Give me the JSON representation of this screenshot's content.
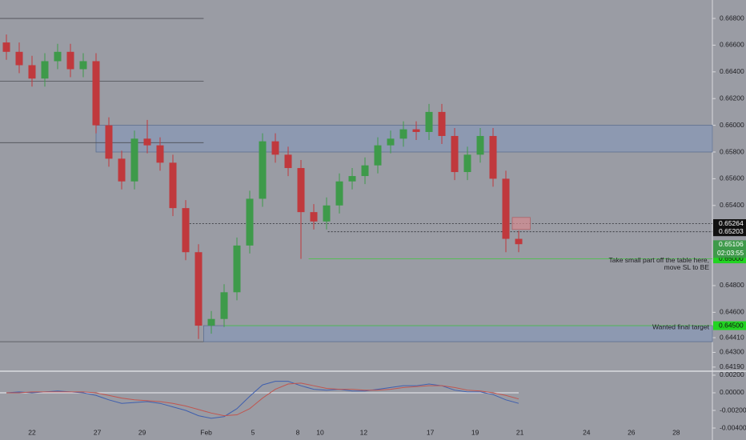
{
  "chart_data": [
    {
      "type": "candlestick",
      "xlim": [
        0,
        55.625
      ],
      "ylim": [
        0.64171,
        0.66938
      ],
      "yticks": [
        {
          "value": 0.668,
          "label": "0.66800"
        },
        {
          "value": 0.666,
          "label": "0.66600"
        },
        {
          "value": 0.664,
          "label": "0.66400"
        },
        {
          "value": 0.662,
          "label": "0.66200"
        },
        {
          "value": 0.66,
          "label": "0.66000"
        },
        {
          "value": 0.658,
          "label": "0.65800"
        },
        {
          "value": 0.656,
          "label": "0.65600"
        },
        {
          "value": 0.654,
          "label": "0.65400"
        },
        {
          "value": 0.648,
          "label": "0.64800"
        },
        {
          "value": 0.646,
          "label": "0.64600"
        },
        {
          "value": 0.6441,
          "label": "0.64410"
        },
        {
          "value": 0.643,
          "label": "0.64300"
        },
        {
          "value": 0.6419,
          "label": "0.64190"
        }
      ],
      "up_color": "#3e9a4a",
      "down_color": "#c0393d",
      "x": [
        0.5,
        1.5,
        2.5,
        3.5,
        4.5,
        5.5,
        6.5,
        7.5,
        8.5,
        9.5,
        10.5,
        11.5,
        12.5,
        13.5,
        14.5,
        15.5,
        16.5,
        17.5,
        18.5,
        19.5,
        20.5,
        21.5,
        22.5,
        23.5,
        24.5,
        25.5,
        26.5,
        27.5,
        28.5,
        29.5,
        30.5,
        31.5,
        32.5,
        33.5,
        34.5,
        35.5,
        36.5,
        37.5,
        38.5,
        39.5,
        40.5
      ],
      "open": [
        0.6662,
        0.6655,
        0.6645,
        0.6635,
        0.6648,
        0.6655,
        0.6642,
        0.6648,
        0.66,
        0.6575,
        0.6558,
        0.659,
        0.6585,
        0.6572,
        0.6538,
        0.6505,
        0.645,
        0.6455,
        0.6475,
        0.651,
        0.6545,
        0.6588,
        0.6578,
        0.6568,
        0.6535,
        0.6528,
        0.654,
        0.6558,
        0.6562,
        0.657,
        0.6585,
        0.659,
        0.6597,
        0.6595,
        0.661,
        0.6592,
        0.6565,
        0.6578,
        0.6592,
        0.656,
        0.6515
      ],
      "high": [
        0.6668,
        0.6662,
        0.6652,
        0.6654,
        0.6661,
        0.6661,
        0.6654,
        0.6654,
        0.6606,
        0.6581,
        0.6596,
        0.6604,
        0.6591,
        0.6578,
        0.6544,
        0.6511,
        0.6461,
        0.6481,
        0.6516,
        0.6551,
        0.6594,
        0.6594,
        0.6584,
        0.6574,
        0.6541,
        0.6546,
        0.6564,
        0.6568,
        0.6576,
        0.6591,
        0.6596,
        0.6603,
        0.6603,
        0.6616,
        0.6616,
        0.6598,
        0.6584,
        0.6598,
        0.6598,
        0.6566,
        0.6521
      ],
      "low": [
        0.6649,
        0.6639,
        0.6629,
        0.6629,
        0.6642,
        0.6636,
        0.6636,
        0.6594,
        0.6569,
        0.6552,
        0.6552,
        0.6579,
        0.6566,
        0.6532,
        0.6499,
        0.644,
        0.6444,
        0.6449,
        0.6469,
        0.6504,
        0.6539,
        0.6572,
        0.6562,
        0.65,
        0.6522,
        0.6522,
        0.6534,
        0.6552,
        0.6556,
        0.6564,
        0.6579,
        0.6584,
        0.6589,
        0.6589,
        0.6586,
        0.6559,
        0.6559,
        0.6572,
        0.6554,
        0.6505,
        0.6505
      ],
      "close": [
        0.6655,
        0.6645,
        0.6635,
        0.6648,
        0.6655,
        0.6642,
        0.6648,
        0.66,
        0.6575,
        0.6558,
        0.659,
        0.6585,
        0.6572,
        0.6538,
        0.6505,
        0.645,
        0.6455,
        0.6475,
        0.651,
        0.6545,
        0.6588,
        0.6578,
        0.6568,
        0.6535,
        0.6528,
        0.654,
        0.6558,
        0.6562,
        0.657,
        0.6585,
        0.659,
        0.6597,
        0.6595,
        0.661,
        0.6592,
        0.6565,
        0.6578,
        0.6592,
        0.656,
        0.6515,
        0.6511
      ],
      "zones": [
        {
          "from": 0.66,
          "to": 0.658,
          "x_start": 7.5
        },
        {
          "from": 0.645,
          "to": 0.6438,
          "x_start": 15.9
        }
      ],
      "levels": [
        {
          "value": 0.668,
          "x_end": 15.9
        },
        {
          "value": 0.6633,
          "x_end": 15.9
        },
        {
          "value": 0.6587,
          "x_end": 15.9
        },
        {
          "value": 0.6438,
          "x_end": 15.9
        }
      ],
      "dotted_levels": [
        {
          "price": 0.65264,
          "x_start": 14.8
        },
        {
          "price": 0.65203,
          "x_start": 25.6
        }
      ],
      "current": {
        "price": 0.65106,
        "countdown": "02:03:55"
      },
      "entry_box": {
        "from": 0.6522,
        "to": 0.6531,
        "x_start": 40,
        "x_end": 41.4
      },
      "targets": [
        {
          "price": {
            "value": 0.65,
            "label": "0.65000"
          },
          "x_start": 24.1,
          "note_lines": [
            "Take small part off the table here,",
            "move SL to BE"
          ]
        },
        {
          "price": {
            "value": 0.645,
            "label": "0.64500"
          },
          "x_start": 17.5,
          "note_lines": [
            "Wanted final target"
          ]
        }
      ]
    },
    {
      "type": "line",
      "xlim": [
        0,
        55.625
      ],
      "ylim": [
        -0.00536,
        0.00227
      ],
      "yticks": [
        {
          "value": 0.002,
          "label": "0.00200"
        },
        {
          "value": 0,
          "label": "0.00000"
        },
        {
          "value": -0.002,
          "label": "-0.00200"
        },
        {
          "value": -0.004,
          "label": "-0.00400"
        }
      ],
      "xticks": [
        {
          "value": 2.5,
          "label": "22"
        },
        {
          "value": 7.6,
          "label": "27"
        },
        {
          "value": 11.1,
          "label": "29"
        },
        {
          "value": 16.1,
          "label": "Feb"
        },
        {
          "value": 19.75,
          "label": "5"
        },
        {
          "value": 23.25,
          "label": "8"
        },
        {
          "value": 25,
          "label": "10"
        },
        {
          "value": 28.4,
          "label": "12"
        },
        {
          "value": 33.6,
          "label": "17"
        },
        {
          "value": 37.1,
          "label": "19"
        },
        {
          "value": 40.6,
          "label": "21"
        },
        {
          "value": 45.8,
          "label": "24"
        },
        {
          "value": 49.3,
          "label": "26"
        },
        {
          "value": 52.8,
          "label": "28"
        }
      ],
      "series": [
        {
          "color": "#3f5fae",
          "values": [
            0,
            0.0001,
            0,
            0.0001,
            0.0002,
            0.0001,
            0,
            -0.0003,
            -0.0008,
            -0.0012,
            -0.0011,
            -0.001,
            -0.0012,
            -0.0016,
            -0.002,
            -0.0026,
            -0.0029,
            -0.0027,
            -0.0018,
            -0.0004,
            0.0009,
            0.0013,
            0.0013,
            0.0008,
            0.0004,
            0.0003,
            0.0004,
            0.0002,
            0.0002,
            0.0004,
            0.0006,
            0.0008,
            0.0008,
            0.001,
            0.0008,
            0.0003,
            0.0001,
            0.0001,
            -0.0002,
            -0.0008,
            -0.0012
          ]
        },
        {
          "color": "#c0554f",
          "values": [
            0,
            0,
            0.0001,
            0.0001,
            0.0001,
            0.0001,
            0.0001,
            0,
            -0.0003,
            -0.0006,
            -0.0008,
            -0.0009,
            -0.001,
            -0.0012,
            -0.0015,
            -0.0019,
            -0.0023,
            -0.0026,
            -0.0025,
            -0.0018,
            -0.0006,
            0.0004,
            0.001,
            0.0011,
            0.0008,
            0.0005,
            0.0004,
            0.0004,
            0.0003,
            0.0003,
            0.0004,
            0.0006,
            0.0007,
            0.0008,
            0.0008,
            0.0006,
            0.0003,
            0.0002,
            0,
            -0.0003,
            -0.0007
          ]
        }
      ]
    }
  ]
}
